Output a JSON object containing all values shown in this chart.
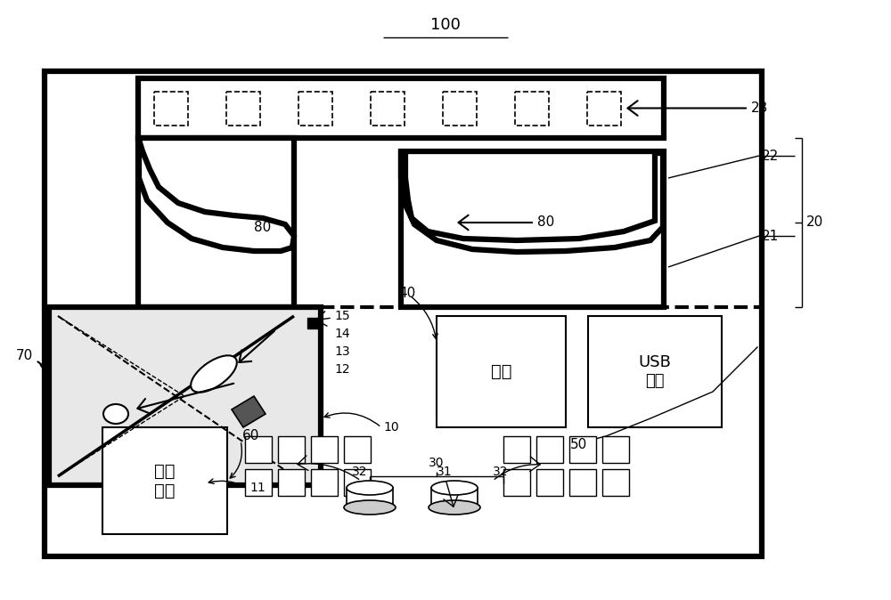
{
  "bg_color": "#ffffff",
  "title": "100",
  "label_23": "23",
  "label_22": "22",
  "label_21": "21",
  "label_20": "20",
  "label_80a": "80",
  "label_80b": "80",
  "label_15": "15",
  "label_14": "14",
  "label_13": "13",
  "label_12": "12",
  "label_11": "11",
  "label_10": "10",
  "label_40": "40",
  "label_30": "30",
  "label_32a": "32",
  "label_31": "31",
  "label_32b": "32",
  "label_60": "60",
  "label_50": "50",
  "label_70": "70",
  "text_dianyuan": "电源",
  "text_usb": "USB\n接口",
  "text_kongzhi": "控制\n电路"
}
